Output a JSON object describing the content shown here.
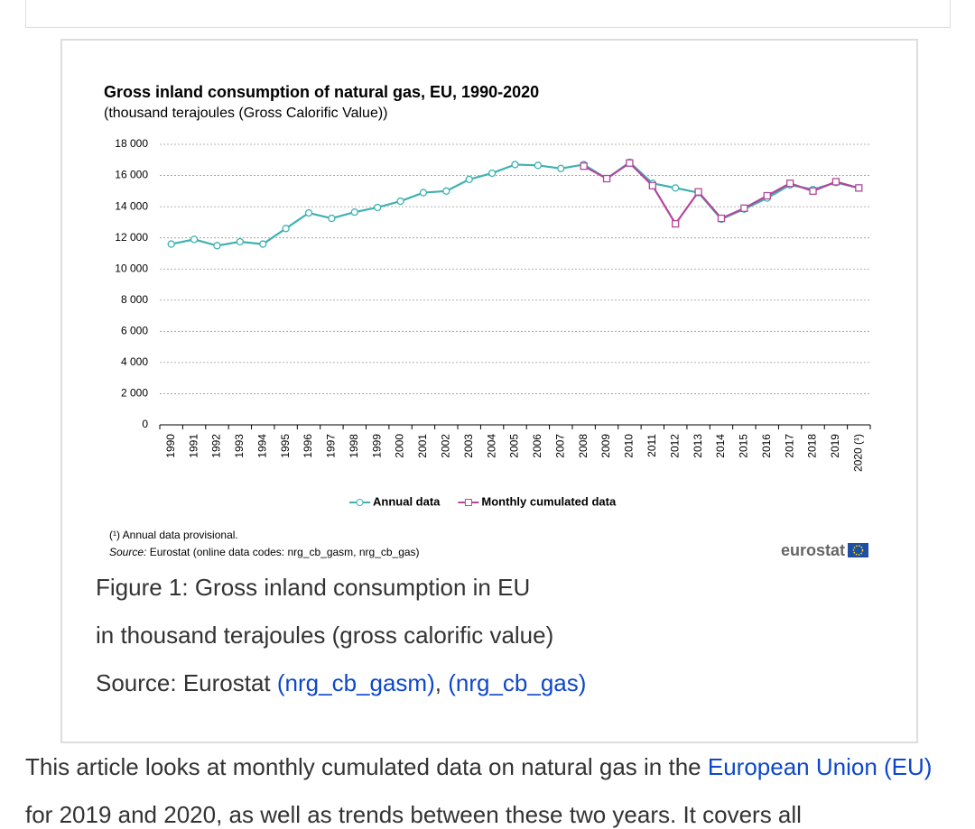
{
  "chart_data": {
    "type": "line",
    "title": "Gross inland consumption of natural gas, EU, 1990-2020",
    "subtitle": "(thousand terajoules (Gross Calorific Value))",
    "categories": [
      "1990",
      "1991",
      "1992",
      "1993",
      "1994",
      "1995",
      "1996",
      "1997",
      "1998",
      "1999",
      "2000",
      "2001",
      "2002",
      "2003",
      "2004",
      "2005",
      "2006",
      "2007",
      "2008",
      "2009",
      "2010",
      "2011",
      "2012",
      "2013",
      "2014",
      "2015",
      "2016",
      "2017",
      "2018",
      "2019",
      "2020 (¹)"
    ],
    "series": [
      {
        "name": "Annual data",
        "color": "#3fb1b1",
        "marker": "circle",
        "values": [
          11600,
          11900,
          11500,
          11750,
          11600,
          12600,
          13600,
          13250,
          13650,
          13950,
          14350,
          14900,
          15000,
          15750,
          16150,
          16700,
          16650,
          16450,
          16700,
          15800,
          16850,
          15500,
          15200,
          14900,
          13200,
          13850,
          14550,
          15400,
          15100,
          15550,
          15200
        ]
      },
      {
        "name": "Monthly cumulated data",
        "color": "#b2479c",
        "marker": "square",
        "values": [
          null,
          null,
          null,
          null,
          null,
          null,
          null,
          null,
          null,
          null,
          null,
          null,
          null,
          null,
          null,
          null,
          null,
          null,
          16600,
          15800,
          16800,
          15350,
          12900,
          14950,
          13250,
          13900,
          14700,
          15500,
          15000,
          15600,
          15200
        ]
      }
    ],
    "ylim": [
      0,
      18000
    ],
    "yticks": [
      0,
      {
        "value": 2000,
        "label": "2 000"
      },
      {
        "value": 4000,
        "label": "4 000"
      },
      {
        "value": 6000,
        "label": "6 000"
      },
      {
        "value": 8000,
        "label": "8 000"
      },
      {
        "value": 10000,
        "label": "10 000"
      },
      {
        "value": 12000,
        "label": "12 000"
      },
      {
        "value": 14000,
        "label": "14 000"
      },
      {
        "value": 16000,
        "label": "16 000"
      },
      {
        "value": 18000,
        "label": "18 000"
      }
    ],
    "grid": true,
    "legend": "bottom",
    "footnote": "(¹) Annual data provisional.",
    "source_label": "Source:",
    "source_text": " Eurostat (online data codes: nrg_cb_gasm, nrg_cb_gas)",
    "logo": "eurostat"
  },
  "caption": {
    "title": "Figure 1: Gross inland consumption in EU",
    "unit": "in thousand terajoules (gross calorific value)",
    "source_prefix": "Source: Eurostat ",
    "link1": "(nrg_cb_gasm)",
    "separator": ", ",
    "link2": "(nrg_cb_gas)"
  },
  "article": {
    "text1": "This article looks at monthly cumulated data on natural gas in the ",
    "link": "European Union (EU)",
    "text2": " for 2019 and 2020, as well as trends between these two years. It covers all"
  }
}
